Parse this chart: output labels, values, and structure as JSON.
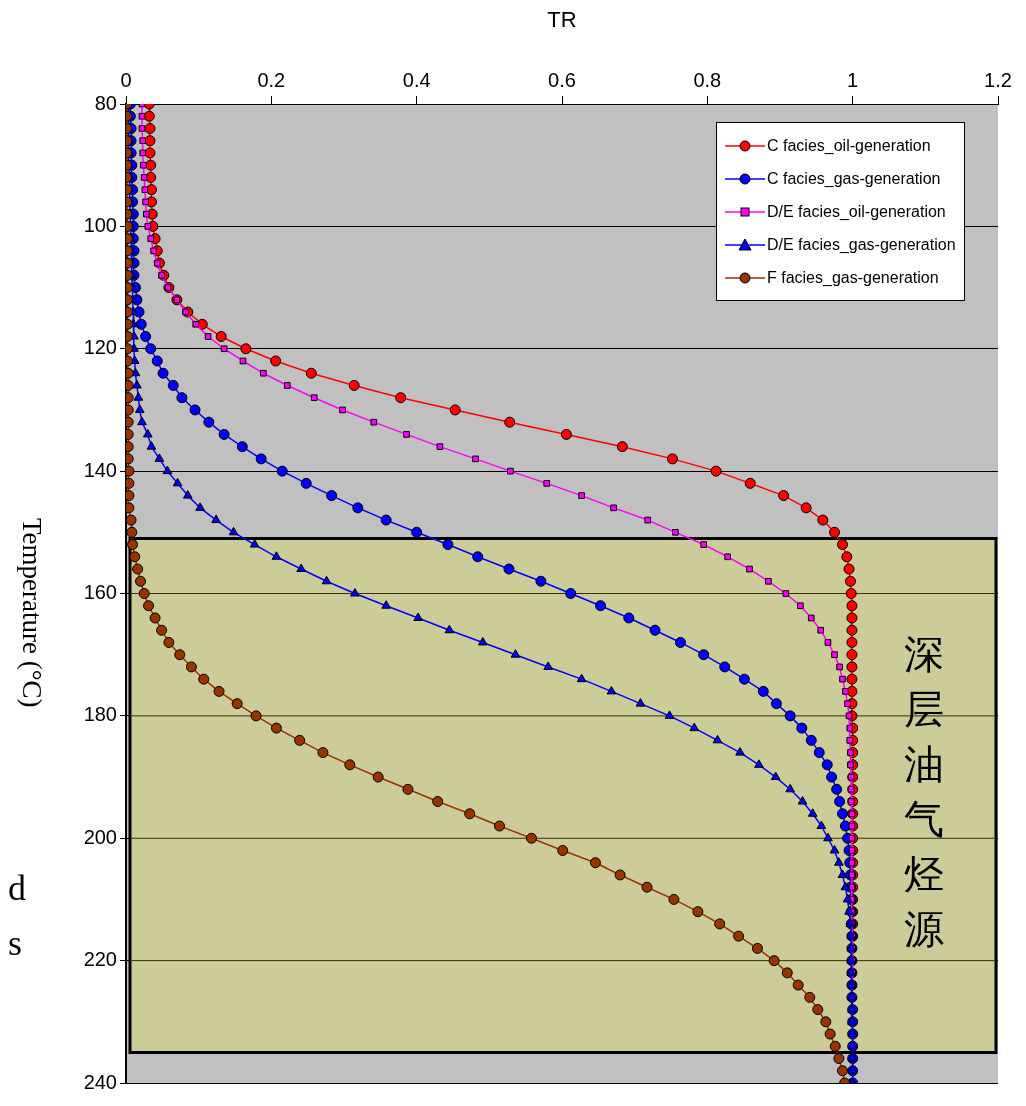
{
  "chart_data": {
    "type": "line",
    "xlabel": "TR",
    "ylabel": "Temperature (°C)",
    "xlim": [
      0,
      1.2
    ],
    "xticks": [
      0,
      0.2,
      0.4,
      0.6,
      0.8,
      1,
      1.2
    ],
    "ylim": [
      240,
      80
    ],
    "yticks": [
      80,
      100,
      120,
      140,
      160,
      180,
      200,
      220,
      240
    ],
    "grid": "y",
    "legend": "top right",
    "bands": [
      {
        "axis": "y",
        "from": 151,
        "to": 235,
        "label": "深层油气烃源",
        "color": "#cccc99"
      }
    ],
    "annotations": [
      "d",
      "s"
    ],
    "series": [
      {
        "name": "C facies_oil-generation",
        "color": "#ff0000",
        "marker": "circle",
        "x": [
          0.032,
          0.032,
          0.033,
          0.033,
          0.033,
          0.034,
          0.034,
          0.035,
          0.035,
          0.036,
          0.037,
          0.04,
          0.043,
          0.046,
          0.052,
          0.059,
          0.07,
          0.085,
          0.105,
          0.131,
          0.165,
          0.206,
          0.255,
          0.314,
          0.378,
          0.453,
          0.528,
          0.606,
          0.683,
          0.752,
          0.812,
          0.859,
          0.905,
          0.936,
          0.959,
          0.975,
          0.986,
          0.992,
          0.995,
          0.997,
          0.998,
          0.999,
          0.999,
          0.999,
          0.999,
          0.999,
          0.999,
          0.999,
          0.999,
          0.999,
          0.999,
          1,
          1,
          1,
          1,
          1,
          1,
          1,
          1,
          1,
          1,
          1,
          1,
          1,
          1,
          1,
          1,
          1,
          1,
          null,
          null,
          null,
          null,
          null,
          null,
          null,
          null,
          null,
          null,
          null,
          null
        ],
        "values": [
          80,
          82,
          84,
          86,
          88,
          90,
          92,
          94,
          96,
          98,
          100,
          102,
          104,
          106,
          108,
          110,
          112,
          114,
          116,
          118,
          120,
          122,
          124,
          126,
          128,
          130,
          132,
          134,
          136,
          138,
          140,
          142,
          144,
          146,
          148,
          150,
          152,
          154,
          156,
          158,
          160,
          162,
          164,
          166,
          168,
          170,
          172,
          174,
          176,
          178,
          180,
          182,
          184,
          186,
          188,
          190,
          192,
          194,
          196,
          198,
          200,
          202,
          204,
          206,
          208,
          210,
          212,
          214,
          216,
          null,
          null,
          null,
          null,
          null,
          null,
          null,
          null,
          null,
          null,
          null,
          null
        ]
      },
      {
        "name": "C facies_gas-generation",
        "color": "#0000ff",
        "marker": "circle",
        "x": [
          0.006,
          0.006,
          0.007,
          0.007,
          0.007,
          0.008,
          0.008,
          0.009,
          0.009,
          0.01,
          0.01,
          0.01,
          0.011,
          0.011,
          0.011,
          0.013,
          0.015,
          0.018,
          0.021,
          0.027,
          0.034,
          0.043,
          0.051,
          0.065,
          0.077,
          0.095,
          0.114,
          0.135,
          0.16,
          0.186,
          0.215,
          0.248,
          0.283,
          0.319,
          0.358,
          0.4,
          0.443,
          0.484,
          0.527,
          0.571,
          0.612,
          0.653,
          0.692,
          0.728,
          0.763,
          0.795,
          0.824,
          0.851,
          0.877,
          0.895,
          0.914,
          0.93,
          0.943,
          0.954,
          0.965,
          0.971,
          0.978,
          0.982,
          0.986,
          0.99,
          0.993,
          0.995,
          0.996,
          0.997,
          0.997,
          0.998,
          0.998,
          0.998,
          0.999,
          0.999,
          0.999,
          0.999,
          0.999,
          0.999,
          1,
          1,
          1,
          1,
          1,
          1,
          1
        ],
        "values": [
          80,
          82,
          84,
          86,
          88,
          90,
          92,
          94,
          96,
          98,
          100,
          102,
          104,
          106,
          108,
          110,
          112,
          114,
          116,
          118,
          120,
          122,
          124,
          126,
          128,
          130,
          132,
          134,
          136,
          138,
          140,
          142,
          144,
          146,
          148,
          150,
          152,
          154,
          156,
          158,
          160,
          162,
          164,
          166,
          168,
          170,
          172,
          174,
          176,
          178,
          180,
          182,
          184,
          186,
          188,
          190,
          192,
          194,
          196,
          198,
          200,
          202,
          204,
          206,
          208,
          210,
          212,
          214,
          216,
          218,
          220,
          222,
          224,
          226,
          228,
          230,
          232,
          234,
          236,
          238,
          240
        ]
      },
      {
        "name": "D/E facies_oil-generation",
        "color": "#ff00ff",
        "marker": "square",
        "x": [
          0.022,
          0.022,
          0.022,
          0.023,
          0.023,
          0.024,
          0.025,
          0.026,
          0.027,
          0.028,
          0.03,
          0.034,
          0.038,
          0.043,
          0.049,
          0.058,
          0.07,
          0.082,
          0.096,
          0.113,
          0.135,
          0.161,
          0.189,
          0.222,
          0.259,
          0.298,
          0.341,
          0.386,
          0.432,
          0.481,
          0.529,
          0.579,
          0.627,
          0.671,
          0.718,
          0.756,
          0.795,
          0.828,
          0.858,
          0.884,
          0.908,
          0.928,
          0.943,
          0.956,
          0.966,
          0.975,
          0.982,
          0.986,
          0.99,
          0.993,
          0.995,
          0.996,
          0.996,
          0.997,
          0.997,
          0.998,
          0.998,
          0.998,
          0.999,
          0.999,
          0.999,
          0.999,
          0.999,
          0.999,
          0.999,
          0.999,
          0.999,
          0.999,
          1,
          1,
          1,
          1,
          1,
          null,
          null,
          null,
          null,
          null,
          null,
          null,
          null
        ],
        "values": [
          80,
          82,
          84,
          86,
          88,
          90,
          92,
          94,
          96,
          98,
          100,
          102,
          104,
          106,
          108,
          110,
          112,
          114,
          116,
          118,
          120,
          122,
          124,
          126,
          128,
          130,
          132,
          134,
          136,
          138,
          140,
          142,
          144,
          146,
          148,
          150,
          152,
          154,
          156,
          158,
          160,
          162,
          164,
          166,
          168,
          170,
          172,
          174,
          176,
          178,
          180,
          182,
          184,
          186,
          188,
          190,
          192,
          194,
          196,
          198,
          200,
          202,
          204,
          206,
          208,
          210,
          212,
          214,
          216,
          218,
          220,
          222,
          224,
          null,
          null,
          null,
          null,
          null,
          null,
          null,
          null
        ]
      },
      {
        "name": "D/E facies_gas-generation",
        "color": "#0000ff",
        "marker": "triangle",
        "x": [
          0.003,
          0.003,
          0.003,
          0.004,
          0.004,
          0.004,
          0.005,
          0.005,
          0.005,
          0.006,
          0.006,
          0.007,
          0.007,
          0.008,
          0.008,
          0.009,
          0.009,
          0.01,
          0.01,
          0.011,
          0.011,
          0.012,
          0.013,
          0.015,
          0.017,
          0.019,
          0.022,
          0.03,
          0.035,
          0.046,
          0.057,
          0.071,
          0.085,
          0.102,
          0.124,
          0.148,
          0.177,
          0.207,
          0.241,
          0.276,
          0.315,
          0.358,
          0.402,
          0.445,
          0.491,
          0.536,
          0.581,
          0.627,
          0.668,
          0.708,
          0.748,
          0.782,
          0.814,
          0.845,
          0.871,
          0.894,
          0.914,
          0.931,
          0.945,
          0.957,
          0.966,
          0.975,
          0.981,
          0.986,
          0.99,
          0.993,
          0.995,
          0.997,
          0.998,
          0.998,
          0.998,
          0.998,
          0.999,
          0.999,
          0.999,
          0.999,
          1,
          1,
          1,
          1,
          1
        ],
        "values": [
          80,
          82,
          84,
          86,
          88,
          90,
          92,
          94,
          96,
          98,
          100,
          102,
          104,
          106,
          108,
          110,
          112,
          114,
          116,
          118,
          120,
          122,
          124,
          126,
          128,
          130,
          132,
          134,
          136,
          138,
          140,
          142,
          144,
          146,
          148,
          150,
          152,
          154,
          156,
          158,
          160,
          162,
          164,
          166,
          168,
          170,
          172,
          174,
          176,
          178,
          180,
          182,
          184,
          186,
          188,
          190,
          192,
          194,
          196,
          198,
          200,
          202,
          204,
          206,
          208,
          210,
          212,
          214,
          216,
          218,
          220,
          222,
          224,
          226,
          228,
          230,
          232,
          234,
          236,
          238,
          240
        ]
      },
      {
        "name": "F facies_gas-generation",
        "color": "#993300",
        "marker": "circle",
        "x": [
          0.001,
          0.001,
          0.001,
          0.001,
          0.001,
          0.001,
          0.001,
          0.001,
          0.001,
          0.001,
          0.002,
          0.002,
          0.002,
          0.002,
          0.002,
          0.002,
          0.002,
          0.002,
          0.002,
          0.002,
          0.002,
          0.002,
          0.003,
          0.003,
          0.003,
          0.003,
          0.003,
          0.003,
          0.003,
          0.003,
          0.004,
          0.004,
          0.004,
          0.004,
          0.007,
          0.008,
          0.009,
          0.012,
          0.016,
          0.02,
          0.025,
          0.031,
          0.04,
          0.049,
          0.059,
          0.074,
          0.09,
          0.107,
          0.128,
          0.153,
          0.179,
          0.207,
          0.239,
          0.271,
          0.308,
          0.347,
          0.388,
          0.429,
          0.473,
          0.514,
          0.558,
          0.601,
          0.646,
          0.68,
          0.717,
          0.754,
          0.787,
          0.817,
          0.843,
          0.869,
          0.892,
          0.91,
          0.925,
          0.941,
          0.952,
          0.963,
          0.969,
          0.976,
          0.981,
          0.986,
          0.989
        ],
        "values": [
          80,
          82,
          84,
          86,
          88,
          90,
          92,
          94,
          96,
          98,
          100,
          102,
          104,
          106,
          108,
          110,
          112,
          114,
          116,
          118,
          120,
          122,
          124,
          126,
          128,
          130,
          132,
          134,
          136,
          138,
          140,
          142,
          144,
          146,
          148,
          150,
          152,
          154,
          156,
          158,
          160,
          162,
          164,
          166,
          168,
          170,
          172,
          174,
          176,
          178,
          180,
          182,
          184,
          186,
          188,
          190,
          192,
          194,
          196,
          198,
          200,
          202,
          204,
          206,
          208,
          210,
          212,
          214,
          216,
          218,
          220,
          222,
          224,
          226,
          228,
          230,
          232,
          234,
          236,
          238,
          240
        ]
      }
    ]
  }
}
